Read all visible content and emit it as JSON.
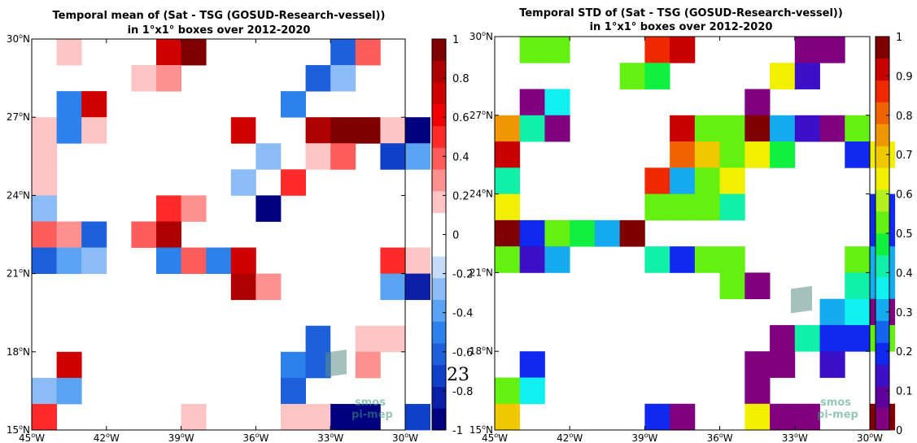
{
  "page_number": "23",
  "watermark": {
    "line1": "smos",
    "line2": "pi-mep"
  },
  "chart_data": [
    {
      "type": "heatmap",
      "title_lines": [
        "Temporal mean of (Sat - TSG (GOSUD-Research-vessel))",
        "in 1°x1° boxes over 2012-2020"
      ],
      "x_unit": "°W",
      "y_unit": "°N",
      "xlim": [
        -45,
        -30
      ],
      "ylim": [
        15,
        30
      ],
      "x_ticks": [
        {
          "v": -45,
          "label": "45°W"
        },
        {
          "v": -42,
          "label": "42°W"
        },
        {
          "v": -39,
          "label": "39°W"
        },
        {
          "v": -36,
          "label": "36°W"
        },
        {
          "v": -33,
          "label": "33°W"
        },
        {
          "v": -30,
          "label": "30°W"
        }
      ],
      "y_ticks": [
        {
          "v": 15,
          "label": "15°N"
        },
        {
          "v": 18,
          "label": "18°N"
        },
        {
          "v": 21,
          "label": "21°N"
        },
        {
          "v": 24,
          "label": "24°N"
        },
        {
          "v": 27,
          "label": "27°N"
        },
        {
          "v": 30,
          "label": "30°N"
        }
      ],
      "colorbar": {
        "vmin": -1,
        "vmax": 1,
        "ticks": [
          {
            "v": 1,
            "label": "1"
          },
          {
            "v": 0.8,
            "label": "0.8"
          },
          {
            "v": 0.6,
            "label": "0.6"
          },
          {
            "v": 0.4,
            "label": "0.4"
          },
          {
            "v": 0.2,
            "label": "0.2"
          },
          {
            "v": 0,
            "label": "0"
          },
          {
            "v": -0.2,
            "label": "-0.2"
          },
          {
            "v": -0.4,
            "label": "-0.4"
          },
          {
            "v": -0.6,
            "label": "-0.6"
          },
          {
            "v": -0.8,
            "label": "-0.8"
          },
          {
            "v": -1,
            "label": "-1"
          }
        ],
        "colors": [
          "#000080",
          "#0a1ea8",
          "#1040c8",
          "#1e60dc",
          "#2c82ea",
          "#5aa2f2",
          "#8cbcf6",
          "#c4dcfa",
          "#ffffff",
          "#ffffff",
          "#ffc4c4",
          "#ff9090",
          "#ff5c5c",
          "#ff2a2a",
          "#f00000",
          "#d00000",
          "#ae0000",
          "#800000"
        ]
      },
      "cells": [
        {
          "lon": -44,
          "lat": 29,
          "v": 0.15
        },
        {
          "lon": -40,
          "lat": 29,
          "v": 0.75
        },
        {
          "lon": -39,
          "lat": 29,
          "v": 0.95
        },
        {
          "lon": -33,
          "lat": 29,
          "v": -0.6
        },
        {
          "lon": -32,
          "lat": 29,
          "v": 0.35
        },
        {
          "lon": -41,
          "lat": 28,
          "v": 0.15
        },
        {
          "lon": -40,
          "lat": 28,
          "v": 0.25
        },
        {
          "lon": -34,
          "lat": 28,
          "v": -0.6
        },
        {
          "lon": -33,
          "lat": 28,
          "v": -0.3
        },
        {
          "lon": -44,
          "lat": 27,
          "v": -0.5
        },
        {
          "lon": -43,
          "lat": 27,
          "v": 0.7
        },
        {
          "lon": -35,
          "lat": 27,
          "v": -0.5
        },
        {
          "lon": -45,
          "lat": 26,
          "v": 0.15
        },
        {
          "lon": -44,
          "lat": 26,
          "v": -0.5
        },
        {
          "lon": -43,
          "lat": 26,
          "v": 0.15
        },
        {
          "lon": -37,
          "lat": 26,
          "v": 0.7
        },
        {
          "lon": -36,
          "lat": 26,
          "v": -0.1
        },
        {
          "lon": -34,
          "lat": 26,
          "v": 0.85
        },
        {
          "lon": -33,
          "lat": 26,
          "v": 0.95
        },
        {
          "lon": -32,
          "lat": 26,
          "v": 0.95
        },
        {
          "lon": -31,
          "lat": 26,
          "v": 0.15
        },
        {
          "lon": -30,
          "lat": 26,
          "v": -0.95
        },
        {
          "lon": -45,
          "lat": 25,
          "v": 0.15
        },
        {
          "lon": -36,
          "lat": 25,
          "v": -0.3
        },
        {
          "lon": -34,
          "lat": 25,
          "v": 0.15
        },
        {
          "lon": -33,
          "lat": 25,
          "v": 0.35
        },
        {
          "lon": -31,
          "lat": 25,
          "v": -0.7
        },
        {
          "lon": -30,
          "lat": 25,
          "v": -0.4
        },
        {
          "lon": -45,
          "lat": 24,
          "v": 0.15
        },
        {
          "lon": -37,
          "lat": 24,
          "v": -0.3
        },
        {
          "lon": -35,
          "lat": 24,
          "v": 0.5
        },
        {
          "lon": -45,
          "lat": 23,
          "v": -0.3
        },
        {
          "lon": -40,
          "lat": 23,
          "v": 0.5
        },
        {
          "lon": -39,
          "lat": 23,
          "v": 0.25
        },
        {
          "lon": -36,
          "lat": 23,
          "v": -0.95
        },
        {
          "lon": -45,
          "lat": 22,
          "v": 0.4
        },
        {
          "lon": -44,
          "lat": 22,
          "v": 0.25
        },
        {
          "lon": -43,
          "lat": 22,
          "v": -0.6
        },
        {
          "lon": -41,
          "lat": 22,
          "v": 0.4
        },
        {
          "lon": -40,
          "lat": 22,
          "v": 0.8
        },
        {
          "lon": -45,
          "lat": 21,
          "v": -0.6
        },
        {
          "lon": -44,
          "lat": 21,
          "v": -0.4
        },
        {
          "lon": -43,
          "lat": 21,
          "v": -0.3
        },
        {
          "lon": -40,
          "lat": 21,
          "v": -0.5
        },
        {
          "lon": -39,
          "lat": 21,
          "v": 0.35
        },
        {
          "lon": -38,
          "lat": 21,
          "v": -0.5
        },
        {
          "lon": -37,
          "lat": 21,
          "v": 0.7
        },
        {
          "lon": -31,
          "lat": 21,
          "v": 0.55
        },
        {
          "lon": -30,
          "lat": 21,
          "v": 0.15
        },
        {
          "lon": -37,
          "lat": 20,
          "v": 0.85
        },
        {
          "lon": -36,
          "lat": 20,
          "v": 0.25
        },
        {
          "lon": -31,
          "lat": 20,
          "v": -0.4
        },
        {
          "lon": -30,
          "lat": 20,
          "v": -0.85
        },
        {
          "lon": -33,
          "lat": 19,
          "v": -0.1
        },
        {
          "lon": -34,
          "lat": 18,
          "v": -0.6
        },
        {
          "lon": -33,
          "lat": 18,
          "v": -0.1
        },
        {
          "lon": -32,
          "lat": 18,
          "v": 0.15
        },
        {
          "lon": -31,
          "lat": 18,
          "v": 0.15
        },
        {
          "lon": -44,
          "lat": 17,
          "v": 0.7
        },
        {
          "lon": -35,
          "lat": 17,
          "v": -0.5
        },
        {
          "lon": -34,
          "lat": 17,
          "v": -0.6
        },
        {
          "lon": -32,
          "lat": 17,
          "v": 0.25
        },
        {
          "lon": -45,
          "lat": 16,
          "v": -0.3
        },
        {
          "lon": -44,
          "lat": 16,
          "v": -0.4
        },
        {
          "lon": -35,
          "lat": 16,
          "v": -0.6
        },
        {
          "lon": -45,
          "lat": 15,
          "v": 0.45
        },
        {
          "lon": -39,
          "lat": 15,
          "v": 0.15
        },
        {
          "lon": -35,
          "lat": 15,
          "v": 0.15
        },
        {
          "lon": -34,
          "lat": 15,
          "v": 0.15
        },
        {
          "lon": -33,
          "lat": 15,
          "v": -0.9
        },
        {
          "lon": -32,
          "lat": 15,
          "v": -0.9
        },
        {
          "lon": -30,
          "lat": 15,
          "v": -0.75
        }
      ]
    },
    {
      "type": "heatmap",
      "title_lines": [
        "Temporal STD of (Sat - TSG (GOSUD-Research-vessel))",
        "in 1°x1° boxes over 2012-2020"
      ],
      "x_unit": "°W",
      "y_unit": "°N",
      "xlim": [
        -45,
        -30
      ],
      "ylim": [
        15,
        30
      ],
      "x_ticks": [
        {
          "v": -45,
          "label": "45°W"
        },
        {
          "v": -42,
          "label": "42°W"
        },
        {
          "v": -39,
          "label": "39°W"
        },
        {
          "v": -36,
          "label": "36°W"
        },
        {
          "v": -33,
          "label": "33°W"
        },
        {
          "v": -30,
          "label": "30°W"
        }
      ],
      "y_ticks": [
        {
          "v": 15,
          "label": "15°N"
        },
        {
          "v": 18,
          "label": "18°N"
        },
        {
          "v": 21,
          "label": "21°N"
        },
        {
          "v": 24,
          "label": "24°N"
        },
        {
          "v": 27,
          "label": "27°N"
        },
        {
          "v": 30,
          "label": "30°N"
        }
      ],
      "colorbar": {
        "vmin": 0,
        "vmax": 1,
        "ticks": [
          {
            "v": 1,
            "label": "1"
          },
          {
            "v": 0.9,
            "label": "0.9"
          },
          {
            "v": 0.8,
            "label": "0.8"
          },
          {
            "v": 0.7,
            "label": "0.7"
          },
          {
            "v": 0.6,
            "label": "0.6"
          },
          {
            "v": 0.5,
            "label": "0.5"
          },
          {
            "v": 0.4,
            "label": "0.4"
          },
          {
            "v": 0.3,
            "label": "0.3"
          },
          {
            "v": 0.2,
            "label": "0.2"
          },
          {
            "v": 0.1,
            "label": "0.1"
          },
          {
            "v": 0,
            "label": "0"
          }
        ],
        "colors": [
          "#800080",
          "#60009a",
          "#3c10c8",
          "#1028f0",
          "#1464f0",
          "#16aaf0",
          "#10f0f0",
          "#10f0a8",
          "#10f040",
          "#64f010",
          "#b4f020",
          "#f0f000",
          "#f0c800",
          "#f09600",
          "#f06400",
          "#f02800",
          "#c80000",
          "#800000"
        ]
      },
      "cells": [
        {
          "lon": -44,
          "lat": 29,
          "v": 0.5
        },
        {
          "lon": -43,
          "lat": 29,
          "v": 0.55
        },
        {
          "lon": -39,
          "lat": 29,
          "v": 0.85
        },
        {
          "lon": -38,
          "lat": 29,
          "v": 0.9
        },
        {
          "lon": -33,
          "lat": 29,
          "v": 0.02
        },
        {
          "lon": -32,
          "lat": 29,
          "v": 0.02
        },
        {
          "lon": -40,
          "lat": 28,
          "v": 0.5
        },
        {
          "lon": -39,
          "lat": 28,
          "v": 0.48
        },
        {
          "lon": -34,
          "lat": 28,
          "v": 0.65
        },
        {
          "lon": -33,
          "lat": 28,
          "v": 0.12
        },
        {
          "lon": -44,
          "lat": 27,
          "v": 0.05
        },
        {
          "lon": -43,
          "lat": 27,
          "v": 0.38
        },
        {
          "lon": -35,
          "lat": 27,
          "v": 0.02
        },
        {
          "lon": -45,
          "lat": 26,
          "v": 0.75
        },
        {
          "lon": -44,
          "lat": 26,
          "v": 0.42
        },
        {
          "lon": -43,
          "lat": 26,
          "v": 0.02
        },
        {
          "lon": -38,
          "lat": 26,
          "v": 0.92
        },
        {
          "lon": -37,
          "lat": 26,
          "v": 0.55
        },
        {
          "lon": -36,
          "lat": 26,
          "v": 0.5
        },
        {
          "lon": -35,
          "lat": 26,
          "v": 0.95
        },
        {
          "lon": -34,
          "lat": 26,
          "v": 0.32
        },
        {
          "lon": -33,
          "lat": 26,
          "v": 0.12
        },
        {
          "lon": -32,
          "lat": 26,
          "v": 0.05
        },
        {
          "lon": -31,
          "lat": 26,
          "v": 0.5
        },
        {
          "lon": -45,
          "lat": 25,
          "v": 0.92
        },
        {
          "lon": -38,
          "lat": 25,
          "v": 0.78
        },
        {
          "lon": -37,
          "lat": 25,
          "v": 0.72
        },
        {
          "lon": -36,
          "lat": 25,
          "v": 0.5
        },
        {
          "lon": -35,
          "lat": 25,
          "v": 0.65
        },
        {
          "lon": -34,
          "lat": 25,
          "v": 0.48
        },
        {
          "lon": -31,
          "lat": 25,
          "v": 0.22
        },
        {
          "lon": -30,
          "lat": 25,
          "v": 0.62
        },
        {
          "lon": -45,
          "lat": 24,
          "v": 0.42
        },
        {
          "lon": -39,
          "lat": 24,
          "v": 0.88
        },
        {
          "lon": -38,
          "lat": 24,
          "v": 0.32
        },
        {
          "lon": -37,
          "lat": 24,
          "v": 0.55
        },
        {
          "lon": -36,
          "lat": 24,
          "v": 0.65
        },
        {
          "lon": -45,
          "lat": 23,
          "v": 0.62
        },
        {
          "lon": -39,
          "lat": 23,
          "v": 0.5
        },
        {
          "lon": -38,
          "lat": 23,
          "v": 0.55
        },
        {
          "lon": -37,
          "lat": 23,
          "v": 0.55
        },
        {
          "lon": -36,
          "lat": 23,
          "v": 0.42
        },
        {
          "lon": -30,
          "lat": 23,
          "v": 0.22
        },
        {
          "lon": -45,
          "lat": 22,
          "v": 0.98
        },
        {
          "lon": -44,
          "lat": 22,
          "v": 0.18
        },
        {
          "lon": -43,
          "lat": 22,
          "v": 0.55
        },
        {
          "lon": -42,
          "lat": 22,
          "v": 0.48
        },
        {
          "lon": -41,
          "lat": 22,
          "v": 0.28
        },
        {
          "lon": -40,
          "lat": 22,
          "v": 0.98
        },
        {
          "lon": -30,
          "lat": 22,
          "v": 0.18
        },
        {
          "lon": -45,
          "lat": 21,
          "v": 0.55
        },
        {
          "lon": -44,
          "lat": 21,
          "v": 0.12
        },
        {
          "lon": -43,
          "lat": 21,
          "v": 0.28
        },
        {
          "lon": -39,
          "lat": 21,
          "v": 0.42
        },
        {
          "lon": -38,
          "lat": 21,
          "v": 0.18
        },
        {
          "lon": -37,
          "lat": 21,
          "v": 0.5
        },
        {
          "lon": -36,
          "lat": 21,
          "v": 0.5
        },
        {
          "lon": -31,
          "lat": 21,
          "v": 0.5
        },
        {
          "lon": -30,
          "lat": 21,
          "v": 0.32
        },
        {
          "lon": -36,
          "lat": 20,
          "v": 0.5
        },
        {
          "lon": -35,
          "lat": 20,
          "v": 0.02
        },
        {
          "lon": -31,
          "lat": 20,
          "v": 0.42
        },
        {
          "lon": -30,
          "lat": 20,
          "v": 0.28
        },
        {
          "lon": -32,
          "lat": 19,
          "v": 0.32
        },
        {
          "lon": -31,
          "lat": 19,
          "v": 0.38
        },
        {
          "lon": -30,
          "lat": 19,
          "v": 0.02
        },
        {
          "lon": -34,
          "lat": 18,
          "v": 0.02
        },
        {
          "lon": -33,
          "lat": 18,
          "v": 0.42
        },
        {
          "lon": -32,
          "lat": 18,
          "v": 0.22
        },
        {
          "lon": -31,
          "lat": 18,
          "v": 0.18
        },
        {
          "lon": -30,
          "lat": 18,
          "v": 0.5
        },
        {
          "lon": -44,
          "lat": 17,
          "v": 0.18
        },
        {
          "lon": -35,
          "lat": 17,
          "v": 0.02
        },
        {
          "lon": -34,
          "lat": 17,
          "v": 0.02
        },
        {
          "lon": -32,
          "lat": 17,
          "v": 0.12
        },
        {
          "lon": -45,
          "lat": 16,
          "v": 0.5
        },
        {
          "lon": -44,
          "lat": 16,
          "v": 0.38
        },
        {
          "lon": -35,
          "lat": 16,
          "v": 0.02
        },
        {
          "lon": -45,
          "lat": 15,
          "v": 0.72
        },
        {
          "lon": -39,
          "lat": 15,
          "v": 0.18
        },
        {
          "lon": -38,
          "lat": 15,
          "v": 0.02
        },
        {
          "lon": -35,
          "lat": 15,
          "v": 0.62
        },
        {
          "lon": -34,
          "lat": 15,
          "v": 0.05
        },
        {
          "lon": -33,
          "lat": 15,
          "v": 0.02
        },
        {
          "lon": -30,
          "lat": 15,
          "v": 0.98
        }
      ]
    }
  ]
}
